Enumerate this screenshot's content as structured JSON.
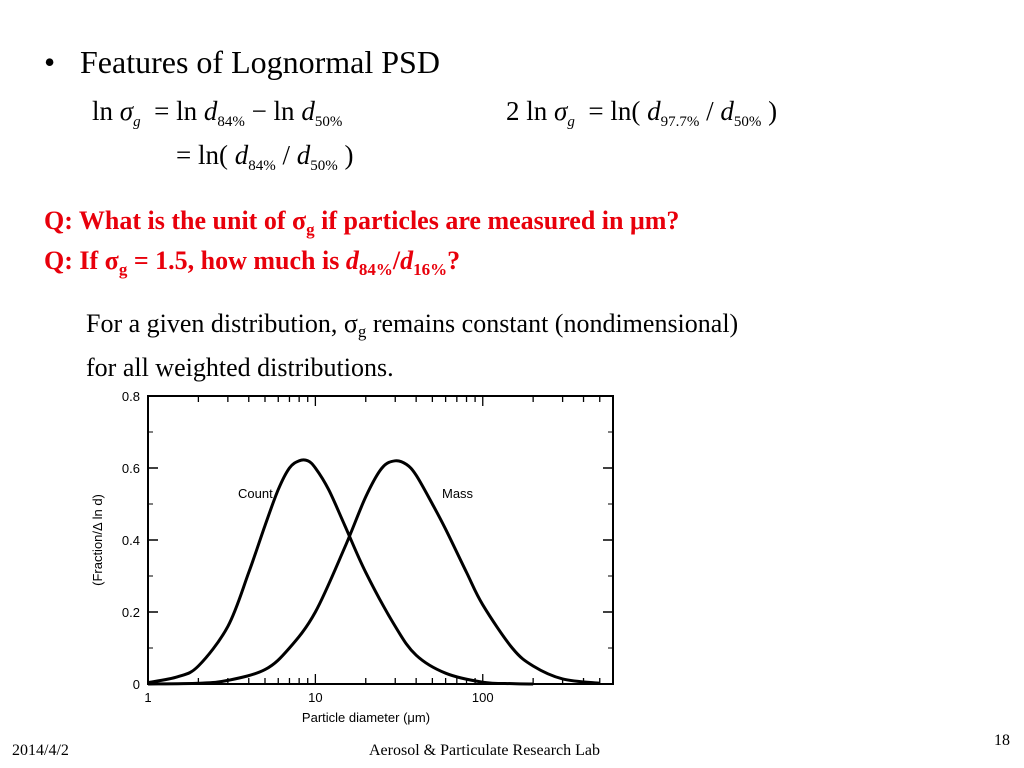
{
  "slide": {
    "bullet": "Features of Lognormal PSD",
    "eq1": {
      "ln": "ln",
      "sigma": "σ",
      "g": "g",
      "eq_ln": "= ln",
      "d": "d",
      "sub84": "84%",
      "minus_ln": "− ln",
      "sub50": "50%"
    },
    "eq2": {
      "eq_ln_paren": "= ln(",
      "d": "d",
      "sub84": "84%",
      "slash": "/",
      "sub50": "50%",
      "close": ")"
    },
    "eq3": {
      "two_ln": "2 ln",
      "sigma": "σ",
      "g": "g",
      "eq_ln_paren": "= ln(",
      "d": "d",
      "sub977": "97.7%",
      "slash": "/",
      "sub50": "50%",
      "close": ")"
    },
    "q1": {
      "pre": "Q: What is the unit of ",
      "sigma": "σ",
      "g": "g",
      "post": " if particles are measured in μm?"
    },
    "q2": {
      "pre": "Q: If ",
      "sigma": "σ",
      "g": "g",
      "mid": " = 1.5, how much is ",
      "d1": "d",
      "sub84": "84%",
      "slash": "/",
      "d2": "d",
      "sub16": "16%",
      "post": "?"
    },
    "note": {
      "line1_pre": "For a given distribution, ",
      "sigma": "σ",
      "g": "g",
      "line1_post": " remains constant (nondimensional)",
      "line2": "for all weighted distributions."
    },
    "footer": {
      "date": "2014/4/2",
      "lab": "Aerosol & Particulate Research Lab",
      "page": "18"
    }
  },
  "chart_data": {
    "type": "line",
    "xscale": "log",
    "xlim": [
      1,
      600
    ],
    "ylim": [
      0,
      0.8
    ],
    "x_ticks": [
      1,
      10,
      100
    ],
    "x_tick_labels": [
      "1",
      "10",
      "100"
    ],
    "y_ticks": [
      0,
      0.2,
      0.4,
      0.6,
      0.8
    ],
    "y_tick_labels": [
      "0",
      "0.2",
      "0.4",
      "0.6",
      "0.8"
    ],
    "xlabel": "Particle diameter (μm)",
    "ylabel": "(Fraction/Δ ln d)",
    "series": [
      {
        "name": "Count",
        "x": [
          1,
          1.5,
          2,
          3,
          4,
          5,
          6,
          7,
          8,
          9,
          10,
          12,
          15,
          20,
          30,
          40,
          60,
          100,
          150,
          200
        ],
        "y": [
          0.004,
          0.02,
          0.05,
          0.16,
          0.31,
          0.44,
          0.54,
          0.6,
          0.62,
          0.62,
          0.6,
          0.54,
          0.44,
          0.31,
          0.16,
          0.08,
          0.03,
          0.005,
          0.001,
          0.0
        ]
      },
      {
        "name": "Mass",
        "x": [
          1,
          2,
          3,
          5,
          7,
          10,
          15,
          20,
          25,
          30,
          35,
          40,
          50,
          60,
          80,
          100,
          150,
          200,
          300,
          500
        ],
        "y": [
          0.0,
          0.002,
          0.01,
          0.04,
          0.1,
          0.2,
          0.38,
          0.52,
          0.6,
          0.62,
          0.61,
          0.58,
          0.5,
          0.43,
          0.31,
          0.22,
          0.1,
          0.05,
          0.014,
          0.002
        ]
      }
    ],
    "grid": false
  }
}
